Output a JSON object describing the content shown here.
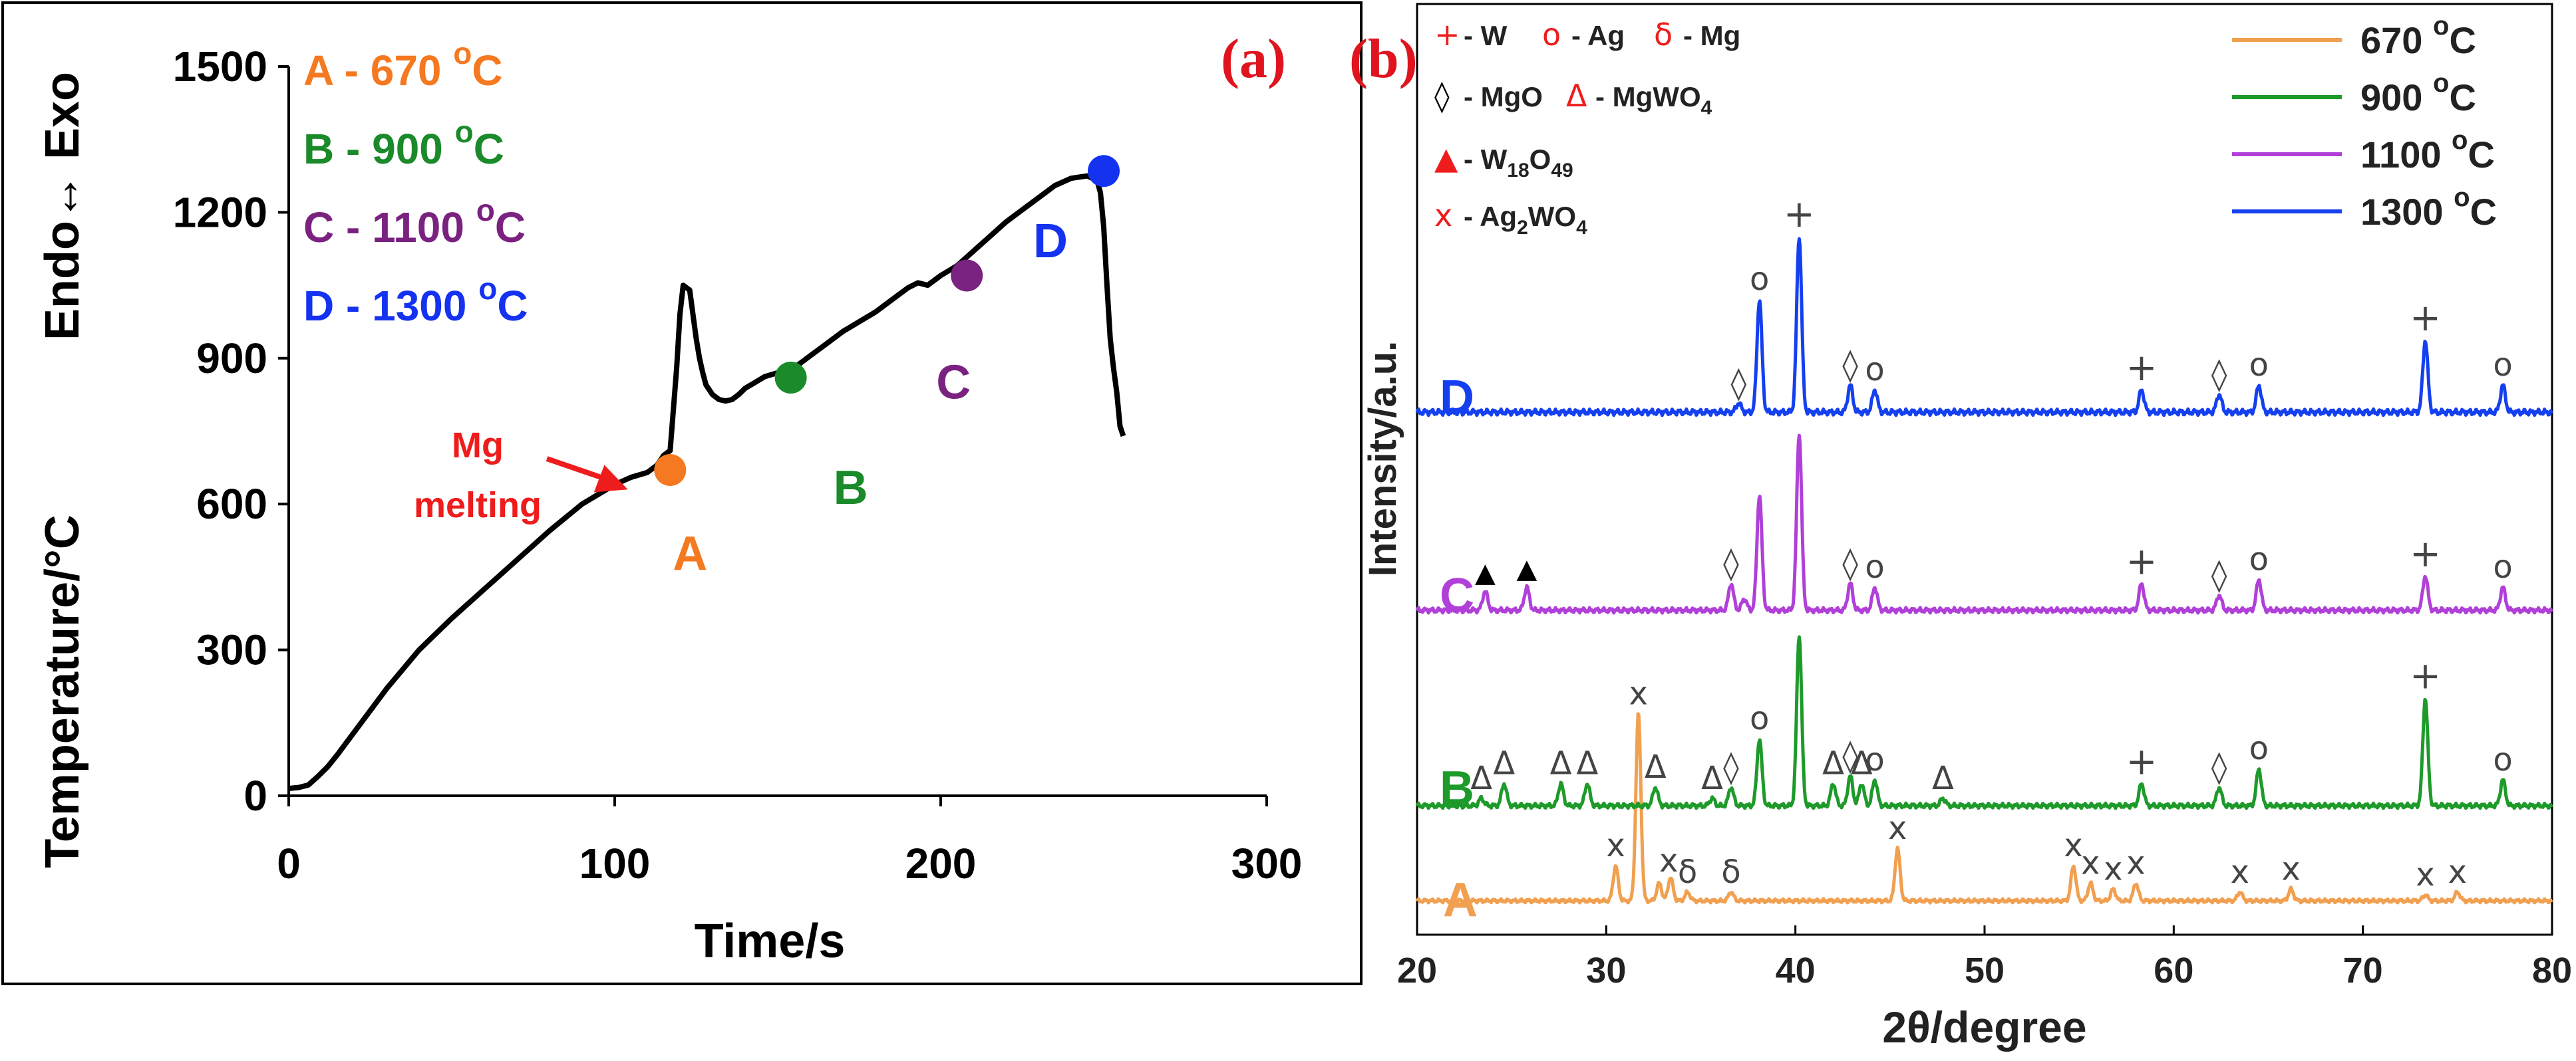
{
  "chart_data": [
    {
      "panel": "(a)",
      "type": "line",
      "xlabel": "Time/s",
      "ylabel_main": "Temperature/°C",
      "ylabel_top": "Endo↔ Exo",
      "xlim": [
        0,
        300
      ],
      "ylim": [
        0,
        1500
      ],
      "xticks": [
        0,
        100,
        200,
        300
      ],
      "yticks": [
        0,
        300,
        600,
        900,
        1200,
        1500
      ],
      "legend": [
        {
          "key": "A",
          "text": "A - 670 °C",
          "prefix": "A - 670 ",
          "sup": "o",
          "suffix": "C",
          "color": "#f47920"
        },
        {
          "key": "B",
          "text": "B - 900 °C",
          "prefix": "B - 900 ",
          "sup": "o",
          "suffix": "C",
          "color": "#1a8a2a"
        },
        {
          "key": "C",
          "text": "C - 1100 °C",
          "prefix": "C - 1100 ",
          "sup": "o",
          "suffix": "C",
          "color": "#7a2280"
        },
        {
          "key": "D",
          "text": "D - 1300 °C",
          "prefix": "D - 1300 ",
          "sup": "o",
          "suffix": "C",
          "color": "#1432f0"
        }
      ],
      "series": [
        {
          "name": "temperature",
          "x": [
            0,
            3,
            6,
            9,
            12,
            15,
            20,
            25,
            30,
            40,
            50,
            60,
            70,
            80,
            90,
            100,
            105,
            110,
            113,
            115,
            117,
            119,
            120,
            121,
            122,
            123,
            124,
            125,
            126,
            127,
            128,
            130,
            132,
            134,
            136,
            138,
            140,
            143,
            146,
            150,
            155,
            160,
            165,
            170,
            175,
            180,
            185,
            190,
            193,
            196,
            200,
            205,
            210,
            215,
            220,
            225,
            230,
            235,
            240,
            245,
            248,
            249,
            250,
            251,
            252,
            253,
            254,
            255,
            256
          ],
          "y": [
            15,
            17,
            22,
            40,
            60,
            85,
            130,
            175,
            220,
            300,
            365,
            425,
            485,
            545,
            600,
            640,
            655,
            665,
            680,
            700,
            710,
            880,
            990,
            1050,
            1045,
            1040,
            990,
            940,
            900,
            870,
            845,
            825,
            815,
            812,
            815,
            825,
            838,
            850,
            862,
            870,
            880,
            905,
            930,
            955,
            975,
            995,
            1020,
            1045,
            1055,
            1050,
            1070,
            1090,
            1120,
            1150,
            1180,
            1205,
            1230,
            1255,
            1270,
            1275,
            1265,
            1240,
            1170,
            1050,
            940,
            880,
            830,
            760,
            740
          ]
        }
      ],
      "points": [
        {
          "key": "A",
          "x": 117,
          "y": 670,
          "label": "A",
          "color": "#f47920"
        },
        {
          "key": "B",
          "x": 154,
          "y": 860,
          "label": "B",
          "color": "#1a8a2a"
        },
        {
          "key": "C",
          "x": 208,
          "y": 1070,
          "label": "C",
          "color": "#7a2280"
        },
        {
          "key": "D",
          "x": 250,
          "y": 1285,
          "label": "D",
          "color": "#1432f0"
        }
      ],
      "annotation": {
        "line1": "Mg",
        "line2": "melting",
        "color": "#ee1c1c",
        "arrow_to": {
          "x": 104,
          "y": 630
        }
      }
    },
    {
      "panel": "(b)",
      "type": "line",
      "xlabel": "2θ/degree",
      "ylabel": "Intensity/a.u.",
      "xlim": [
        20,
        80
      ],
      "xticks": [
        20,
        30,
        40,
        50,
        60,
        70,
        80
      ],
      "legend_phases": [
        {
          "symbol": "+",
          "text": "- W",
          "color": "#ee1c1c"
        },
        {
          "symbol": "o",
          "text": "- Ag",
          "color": "#ee1c1c"
        },
        {
          "symbol": "δ",
          "text": "- Mg",
          "color": "#ee1c1c"
        },
        {
          "symbol": "◊",
          "text": "- MgO",
          "color": "#000000"
        },
        {
          "symbol": "Δ",
          "text": "- MgWO",
          "sub": "4",
          "color": "#ee1c1c"
        },
        {
          "symbol": "▲",
          "text": "- W",
          "sub": "18",
          "text2": "O",
          "sub2": "49",
          "color": "#ee1c1c"
        },
        {
          "symbol": "x",
          "text": "- Ag",
          "sub": "2",
          "text2": "WO",
          "sub2": "4",
          "color": "#ee1c1c"
        }
      ],
      "legend_series": [
        {
          "text": "670 °C",
          "prefix": "670 ",
          "sup": "o",
          "suffix": "C",
          "color": "#f0a050"
        },
        {
          "text": "900 °C",
          "prefix": "900 ",
          "sup": "o",
          "suffix": "C",
          "color": "#1e9a2a"
        },
        {
          "text": "1100 °C",
          "prefix": "1100 ",
          "sup": "o",
          "suffix": "C",
          "color": "#b040d8"
        },
        {
          "text": "1300 °C",
          "prefix": "1300 ",
          "sup": "o",
          "suffix": "C",
          "color": "#1440f0"
        }
      ],
      "series": [
        {
          "name": "A",
          "label": "A",
          "temp": "670 °C",
          "color": "#f0a050",
          "peaks": [
            [
              30.5,
              1.2
            ],
            [
              31.7,
              6.4
            ],
            [
              32.8,
              0.6
            ],
            [
              33.4,
              0.8
            ],
            [
              34.3,
              0.3
            ],
            [
              36.6,
              0.3
            ],
            [
              45.4,
              1.8
            ],
            [
              54.7,
              1.2
            ],
            [
              55.6,
              0.6
            ],
            [
              56.8,
              0.4
            ],
            [
              58.0,
              0.6
            ],
            [
              63.5,
              0.3
            ],
            [
              66.2,
              0.4
            ],
            [
              73.3,
              0.2
            ],
            [
              75.0,
              0.3
            ]
          ],
          "labels": [
            [
              30.5,
              "x"
            ],
            [
              31.7,
              "x"
            ],
            [
              33.3,
              "x"
            ],
            [
              34.3,
              "δ"
            ],
            [
              36.6,
              "δ"
            ],
            [
              45.4,
              "x"
            ],
            [
              54.7,
              "x"
            ],
            [
              55.6,
              "x"
            ],
            [
              56.8,
              "x"
            ],
            [
              58.0,
              "x"
            ],
            [
              63.5,
              "x"
            ],
            [
              66.2,
              "x"
            ],
            [
              73.3,
              "x"
            ],
            [
              75.0,
              "x"
            ]
          ]
        },
        {
          "name": "B",
          "label": "B",
          "temp": "900 °C",
          "color": "#1e9a2a",
          "peaks": [
            [
              23.4,
              0.2
            ],
            [
              24.6,
              0.6
            ],
            [
              27.6,
              0.6
            ],
            [
              29.0,
              0.6
            ],
            [
              32.6,
              0.5
            ],
            [
              35.6,
              0.2
            ],
            [
              36.6,
              0.5
            ],
            [
              38.1,
              1.8
            ],
            [
              40.2,
              4.6
            ],
            [
              42.0,
              0.6
            ],
            [
              42.9,
              0.8
            ],
            [
              43.5,
              0.6
            ],
            [
              44.2,
              0.7
            ],
            [
              47.8,
              0.2
            ],
            [
              58.3,
              0.6
            ],
            [
              62.4,
              0.5
            ],
            [
              64.5,
              1.0
            ],
            [
              73.3,
              2.9
            ],
            [
              77.4,
              0.7
            ]
          ],
          "labels": [
            [
              23.4,
              "Δ"
            ],
            [
              24.6,
              "Δ"
            ],
            [
              27.6,
              "Δ"
            ],
            [
              29.0,
              "Δ"
            ],
            [
              32.6,
              "Δ"
            ],
            [
              35.6,
              "Δ"
            ],
            [
              36.6,
              "◊"
            ],
            [
              38.1,
              "o"
            ],
            [
              42.0,
              "Δ"
            ],
            [
              42.9,
              "◊"
            ],
            [
              43.5,
              "Δ"
            ],
            [
              44.2,
              "o"
            ],
            [
              47.8,
              "Δ"
            ],
            [
              58.3,
              "+"
            ],
            [
              62.4,
              "◊"
            ],
            [
              64.5,
              "o"
            ],
            [
              73.3,
              "+"
            ],
            [
              77.4,
              "o"
            ]
          ]
        },
        {
          "name": "C",
          "label": "C",
          "temp": "1100 °C",
          "color": "#b040d8",
          "peaks": [
            [
              23.6,
              0.5
            ],
            [
              25.8,
              0.6
            ],
            [
              36.6,
              0.7
            ],
            [
              37.3,
              0.3
            ],
            [
              38.1,
              3.0
            ],
            [
              40.2,
              4.6
            ],
            [
              42.9,
              0.7
            ],
            [
              44.2,
              0.6
            ],
            [
              58.3,
              0.7
            ],
            [
              62.4,
              0.4
            ],
            [
              64.5,
              0.8
            ],
            [
              73.3,
              0.9
            ],
            [
              77.4,
              0.6
            ]
          ],
          "labels": [
            [
              23.6,
              "▲"
            ],
            [
              25.8,
              "▲"
            ],
            [
              36.6,
              "◊"
            ],
            [
              42.9,
              "◊"
            ],
            [
              44.2,
              "o"
            ],
            [
              58.3,
              "+"
            ],
            [
              62.4,
              "◊"
            ],
            [
              64.5,
              "o"
            ],
            [
              73.3,
              "+"
            ],
            [
              77.4,
              "o"
            ]
          ]
        },
        {
          "name": "D",
          "label": "D",
          "temp": "1300 °C",
          "color": "#1440f0",
          "peaks": [
            [
              37.0,
              0.2
            ],
            [
              38.1,
              2.5
            ],
            [
              40.2,
              3.9
            ],
            [
              42.9,
              0.6
            ],
            [
              44.2,
              0.5
            ],
            [
              58.3,
              0.5
            ],
            [
              62.4,
              0.4
            ],
            [
              64.5,
              0.6
            ],
            [
              73.3,
              1.6
            ],
            [
              77.4,
              0.6
            ]
          ],
          "labels": [
            [
              37.0,
              "◊"
            ],
            [
              38.1,
              "o"
            ],
            [
              40.2,
              "+"
            ],
            [
              42.9,
              "◊"
            ],
            [
              44.2,
              "o"
            ],
            [
              58.3,
              "+"
            ],
            [
              62.4,
              "◊"
            ],
            [
              64.5,
              "o"
            ],
            [
              73.3,
              "+"
            ],
            [
              77.4,
              "o"
            ]
          ]
        }
      ]
    }
  ]
}
